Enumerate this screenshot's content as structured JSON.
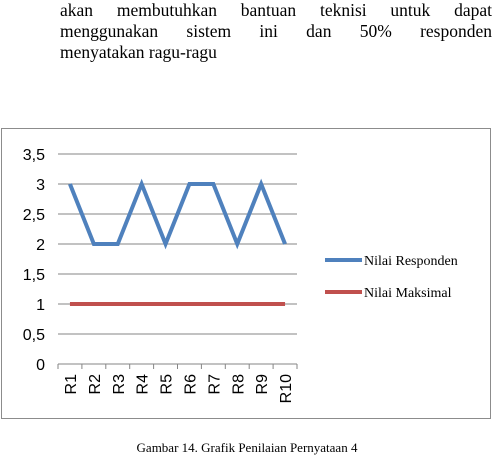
{
  "paragraph": {
    "lines": [
      "akan membutuhkan bantuan teknisi untuk dapat",
      "menggunakan sistem ini dan 50% responden",
      "menyatakan ragu-ragu"
    ]
  },
  "caption": "Gambar 14. Grafik Penilaian Pernyataan 4",
  "chart_data": {
    "type": "line",
    "title": "",
    "xlabel": "",
    "ylabel": "",
    "categories": [
      "R1",
      "R2",
      "R3",
      "R4",
      "R5",
      "R6",
      "R7",
      "R8",
      "R9",
      "R10"
    ],
    "ylim": [
      0,
      3.5
    ],
    "yticks": [
      "0",
      "0,5",
      "1",
      "1,5",
      "2",
      "2,5",
      "3",
      "3,5"
    ],
    "grid": true,
    "legend_position": "right",
    "series": [
      {
        "name": "Nilai Responden",
        "color": "#4f81bd",
        "values": [
          3,
          2,
          2,
          3,
          2,
          3,
          3,
          2,
          3,
          2
        ]
      },
      {
        "name": "Nilai Maksimal",
        "color": "#c0504d",
        "values": [
          1,
          1,
          1,
          1,
          1,
          1,
          1,
          1,
          1,
          1
        ]
      }
    ]
  }
}
